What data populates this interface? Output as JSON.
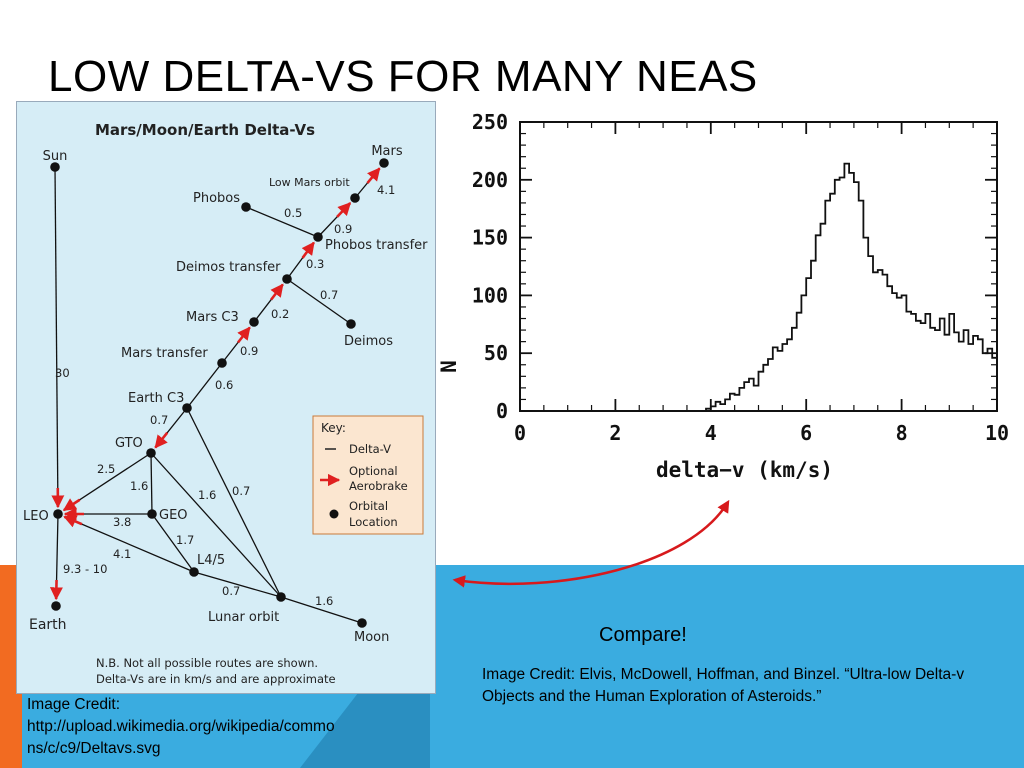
{
  "slide": {
    "title": "LOW DELTA-VS FOR MANY NEAS",
    "compare": "Compare!",
    "credit_right": "Image Credit: Elvis, McDowell, Hoffman, and Binzel. “Ultra-low Delta-v Objects and the Human Exploration of Asteroids.”",
    "credit_left_lines": [
      "Image Credit:",
      "http://upload.wikimedia.org/wikipedia/commo",
      "ns/c/c9/Deltavs.svg"
    ],
    "colors": {
      "blue_band": "#3aace0",
      "orange_accent": "#f26b21",
      "arrow_red": "#e02020",
      "diagram_bg": "#d6edf6"
    }
  },
  "diagram": {
    "title": "Mars/Moon/Earth Delta-Vs",
    "nodes": [
      {
        "id": "sun",
        "label": "Sun"
      },
      {
        "id": "mars",
        "label": "Mars"
      },
      {
        "id": "lmo",
        "label": "Low Mars orbit"
      },
      {
        "id": "phobos",
        "label": "Phobos"
      },
      {
        "id": "phobos_transfer",
        "label": "Phobos transfer"
      },
      {
        "id": "deimos_transfer",
        "label": "Deimos transfer"
      },
      {
        "id": "mars_c3",
        "label": "Mars C3"
      },
      {
        "id": "deimos",
        "label": "Deimos"
      },
      {
        "id": "mars_transfer",
        "label": "Mars transfer"
      },
      {
        "id": "earth_c3",
        "label": "Earth C3"
      },
      {
        "id": "gto",
        "label": "GTO"
      },
      {
        "id": "leo",
        "label": "LEO"
      },
      {
        "id": "geo",
        "label": "GEO"
      },
      {
        "id": "l45",
        "label": "L4/5"
      },
      {
        "id": "lunar_orbit",
        "label": "Lunar orbit"
      },
      {
        "id": "earth",
        "label": "Earth"
      },
      {
        "id": "moon",
        "label": "Moon"
      }
    ],
    "edges": [
      {
        "from": "sun",
        "to": "leo",
        "dv": "30",
        "aerobrake": true
      },
      {
        "from": "lmo",
        "to": "mars",
        "dv": "4.1",
        "aerobrake": true
      },
      {
        "from": "phobos",
        "to": "phobos_transfer",
        "dv": "0.5",
        "aerobrake": false
      },
      {
        "from": "phobos_transfer",
        "to": "lmo",
        "dv": "0.9",
        "aerobrake": true
      },
      {
        "from": "deimos_transfer",
        "to": "phobos_transfer",
        "dv": "0.3",
        "aerobrake": true
      },
      {
        "from": "deimos_transfer",
        "to": "deimos",
        "dv": "0.7",
        "aerobrake": false
      },
      {
        "from": "mars_c3",
        "to": "deimos_transfer",
        "dv": "0.2",
        "aerobrake": true
      },
      {
        "from": "mars_transfer",
        "to": "mars_c3",
        "dv": "0.9",
        "aerobrake": true
      },
      {
        "from": "earth_c3",
        "to": "mars_transfer",
        "dv": "0.6",
        "aerobrake": false
      },
      {
        "from": "earth_c3",
        "to": "gto",
        "dv": "0.7",
        "aerobrake": true
      },
      {
        "from": "gto",
        "to": "leo",
        "dv": "2.5",
        "aerobrake": true
      },
      {
        "from": "gto",
        "to": "geo",
        "dv": "1.6",
        "aerobrake": false
      },
      {
        "from": "gto",
        "to": "lunar_orbit",
        "dv": "1.6",
        "aerobrake": false
      },
      {
        "from": "earth_c3",
        "to": "lunar_orbit",
        "dv": "0.7",
        "aerobrake": false
      },
      {
        "from": "geo",
        "to": "leo",
        "dv": "3.8",
        "aerobrake": true
      },
      {
        "from": "geo",
        "to": "l45",
        "dv": "1.7",
        "aerobrake": false
      },
      {
        "from": "l45",
        "to": "leo",
        "dv": "4.1",
        "aerobrake": true
      },
      {
        "from": "l45",
        "to": "lunar_orbit",
        "dv": "0.7",
        "aerobrake": false
      },
      {
        "from": "lunar_orbit",
        "to": "moon",
        "dv": "1.6",
        "aerobrake": false
      },
      {
        "from": "leo",
        "to": "earth",
        "dv": "9.3 - 10",
        "aerobrake": true
      }
    ],
    "key": {
      "title": "Key:",
      "items": [
        {
          "icon": "line-icon",
          "label": "Delta-V"
        },
        {
          "icon": "red-arrow-icon",
          "label": "Optional Aerobrake"
        },
        {
          "icon": "dot-icon",
          "label": "Orbital Location"
        }
      ]
    },
    "note_lines": [
      "N.B. Not all possible routes are shown.",
      "Delta-Vs are in km/s and are approximate"
    ]
  },
  "chart_data": {
    "type": "line",
    "title": "",
    "xlabel": "delta−v (km/s)",
    "ylabel": "N",
    "xlim": [
      0,
      10
    ],
    "ylim": [
      0,
      250
    ],
    "xticks": [
      "0",
      "2",
      "4",
      "6",
      "8",
      "10"
    ],
    "yticks": [
      "0",
      "50",
      "100",
      "150",
      "200",
      "250"
    ],
    "grid": false,
    "step": true,
    "series": [
      {
        "x": [
          3.8,
          3.9,
          4.0,
          4.1,
          4.2,
          4.3,
          4.4,
          4.5,
          4.6,
          4.7,
          4.8,
          4.9,
          5.0,
          5.1,
          5.2,
          5.3,
          5.4,
          5.5,
          5.6,
          5.7,
          5.8,
          5.9,
          6.0,
          6.1,
          6.2,
          6.3,
          6.4,
          6.5,
          6.6,
          6.7,
          6.8,
          6.9,
          7.0,
          7.1,
          7.2,
          7.3,
          7.4,
          7.5,
          7.6,
          7.7,
          7.8,
          7.9,
          8.0,
          8.1,
          8.2,
          8.3,
          8.4,
          8.5,
          8.6,
          8.7,
          8.8,
          8.9,
          9.0,
          9.1,
          9.2,
          9.3,
          9.4,
          9.5,
          9.6,
          9.7,
          9.8,
          9.9,
          10.0
        ],
        "y": [
          0,
          2,
          4,
          8,
          6,
          10,
          15,
          14,
          20,
          25,
          28,
          22,
          34,
          40,
          45,
          55,
          52,
          58,
          62,
          72,
          85,
          100,
          115,
          130,
          152,
          162,
          182,
          188,
          200,
          202,
          214,
          206,
          198,
          182,
          150,
          134,
          120,
          122,
          118,
          108,
          102,
          98,
          100,
          86,
          84,
          78,
          76,
          84,
          72,
          70,
          80,
          66,
          84,
          68,
          60,
          70,
          58,
          65,
          62,
          50,
          54,
          46,
          48
        ]
      }
    ]
  }
}
